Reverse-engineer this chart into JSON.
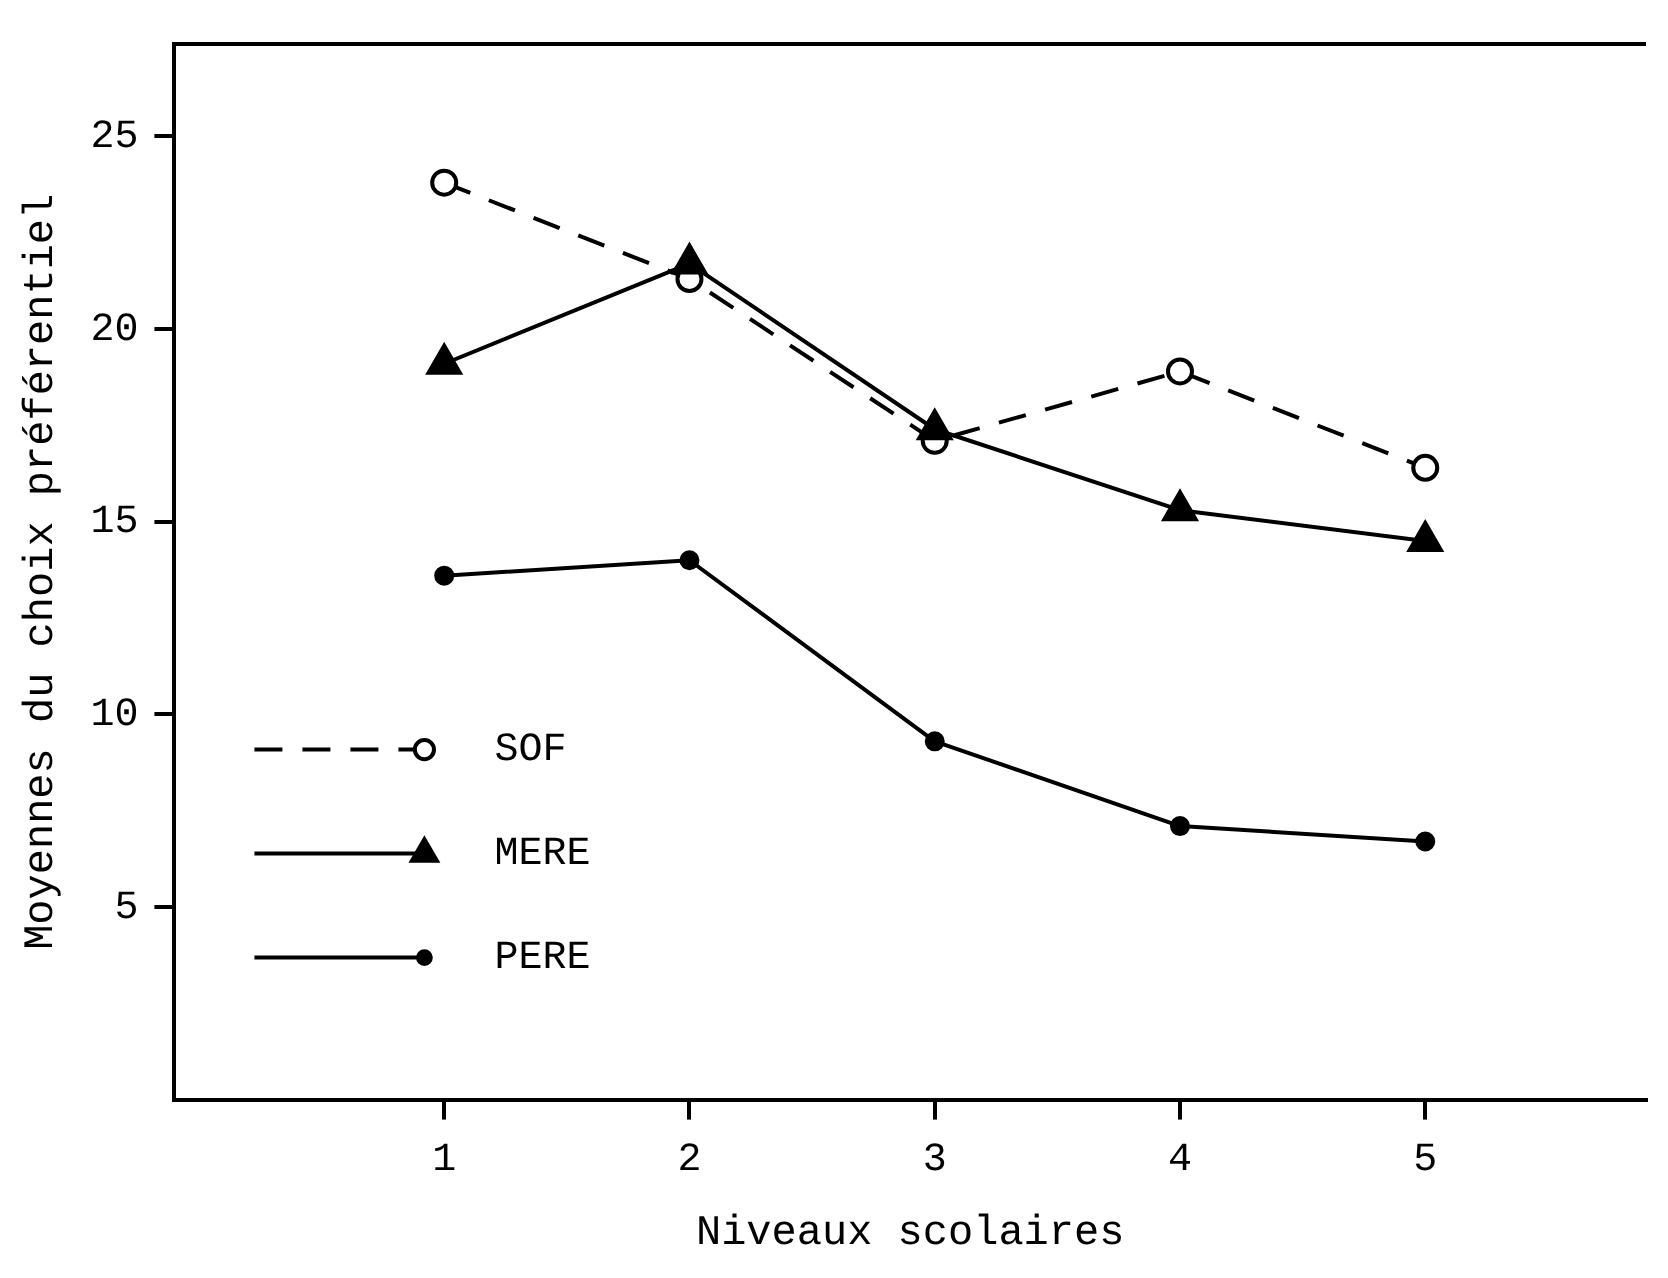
{
  "chart_data": {
    "type": "line",
    "xlabel": "Niveaux scolaires",
    "ylabel": "Moyennes du choix préférentiel",
    "x": [
      1,
      2,
      3,
      4,
      5
    ],
    "series": [
      {
        "name": "SOF",
        "color": "#000000",
        "marker": "circle",
        "line_style": "dashed",
        "values": [
          23.8,
          21.3,
          17.1,
          18.9,
          16.4
        ]
      },
      {
        "name": "MERE",
        "color": "#000000",
        "marker": "triangle",
        "line_style": "solid",
        "values": [
          19.1,
          21.7,
          17.4,
          15.3,
          14.5
        ]
      },
      {
        "name": "PERE",
        "color": "#000000",
        "marker": "circle",
        "line_style": "solid",
        "values": [
          13.6,
          14.0,
          9.3,
          7.1,
          6.7
        ]
      }
    ],
    "xlim": [
      -0.1,
      5.9
    ],
    "xticks": [
      1,
      2,
      3,
      4,
      5
    ],
    "ylim": [
      0,
      27.4
    ],
    "yticks": [
      5,
      10,
      15,
      20,
      25
    ],
    "grid": false,
    "legend": "bottom left"
  }
}
